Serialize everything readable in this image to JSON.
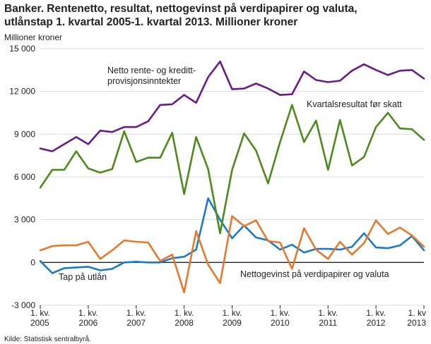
{
  "header": {
    "title_line1": "Banker. Rentenetto, resultat, nettogevinst på verdipapirer og valuta,",
    "title_line2": "utlånstap 1. kvartal 2005-1. kvartal 2013. Millioner kroner",
    "unit_label": "Millioner kroner"
  },
  "footer": {
    "source": "Kilde: Statistisk sentralbyrå."
  },
  "chart_data": {
    "type": "line",
    "title": "Banker. Rentenetto, resultat, nettogevinst på verdipapirer og valuta, utlånstap 1. kvartal 2005-1. kvartal 2013. Millioner kroner",
    "ylabel": "Millioner kroner",
    "xlabel": "",
    "ylim": [
      -3000,
      15000
    ],
    "yticks": [
      -3000,
      0,
      3000,
      6000,
      9000,
      12000,
      15000
    ],
    "ytick_labels": [
      "-3 000",
      "0",
      "3 000",
      "6 000",
      "9 000",
      "12 000",
      "15 000"
    ],
    "xtick_labels": [
      {
        "index": 0,
        "line1": "1. kv.",
        "line2": "2005"
      },
      {
        "index": 4,
        "line1": "1. kv.",
        "line2": "2006"
      },
      {
        "index": 8,
        "line1": "1. kv.",
        "line2": "2007"
      },
      {
        "index": 12,
        "line1": "1. kv.",
        "line2": "2008"
      },
      {
        "index": 16,
        "line1": "1. kv.",
        "line2": "2009"
      },
      {
        "index": 20,
        "line1": "1. kv.",
        "line2": "2010"
      },
      {
        "index": 24,
        "line1": "1. kv.",
        "line2": "2011"
      },
      {
        "index": 28,
        "line1": "1. kv.",
        "line2": "2012"
      },
      {
        "index": 32,
        "line1": "1. kv",
        "line2": "2013"
      }
    ],
    "grid": true,
    "series": [
      {
        "name": "Netto rente- og kreditt-provisjonsinntekter",
        "label_lines": [
          "Netto rente- og kreditt-",
          "provisjonsinntekter"
        ],
        "color": "#6a1b8a",
        "values": [
          8000,
          7800,
          8300,
          8800,
          8300,
          9250,
          9150,
          9500,
          9500,
          9900,
          11050,
          11100,
          11750,
          11200,
          13000,
          14100,
          12150,
          12200,
          12550,
          12200,
          11750,
          11800,
          13400,
          12800,
          12650,
          12750,
          13450,
          13900,
          13500,
          13150,
          13450,
          13500,
          12900
        ]
      },
      {
        "name": "Kvartalsresultat før skatt",
        "label_lines": [
          "Kvartalsresultat før skatt"
        ],
        "color": "#4c8a1c",
        "values": [
          5250,
          6500,
          6500,
          7800,
          6600,
          6300,
          6550,
          9200,
          7050,
          7350,
          7350,
          9100,
          4800,
          8800,
          6550,
          2050,
          6500,
          9050,
          7850,
          5550,
          8450,
          11050,
          8450,
          9950,
          6500,
          10000,
          6800,
          7400,
          9500,
          10500,
          9400,
          9350,
          8600
        ]
      },
      {
        "name": "Nettogevinst på verdipapirer og valuta",
        "label_lines": [
          "Nettogevinst på verdipapirer og valuta"
        ],
        "color": "#e8782a",
        "values": [
          850,
          1150,
          1200,
          1200,
          1450,
          250,
          850,
          1550,
          1450,
          1400,
          100,
          550,
          -2100,
          2200,
          -150,
          -1450,
          3250,
          2550,
          2950,
          1500,
          1400,
          -450,
          2400,
          900,
          250,
          1450,
          550,
          1350,
          2950,
          2000,
          2450,
          1900,
          1100
        ]
      },
      {
        "name": "Tap på utlån",
        "label_lines": [
          "Tap på  utlån"
        ],
        "color": "#1a7ac8",
        "values": [
          100,
          -750,
          -400,
          -350,
          -300,
          -550,
          -450,
          0,
          50,
          0,
          0,
          300,
          400,
          900,
          4500,
          3000,
          1700,
          2600,
          1750,
          1550,
          900,
          1250,
          700,
          950,
          950,
          900,
          1100,
          2050,
          1050,
          1000,
          1200,
          1850,
          850
        ]
      }
    ]
  }
}
